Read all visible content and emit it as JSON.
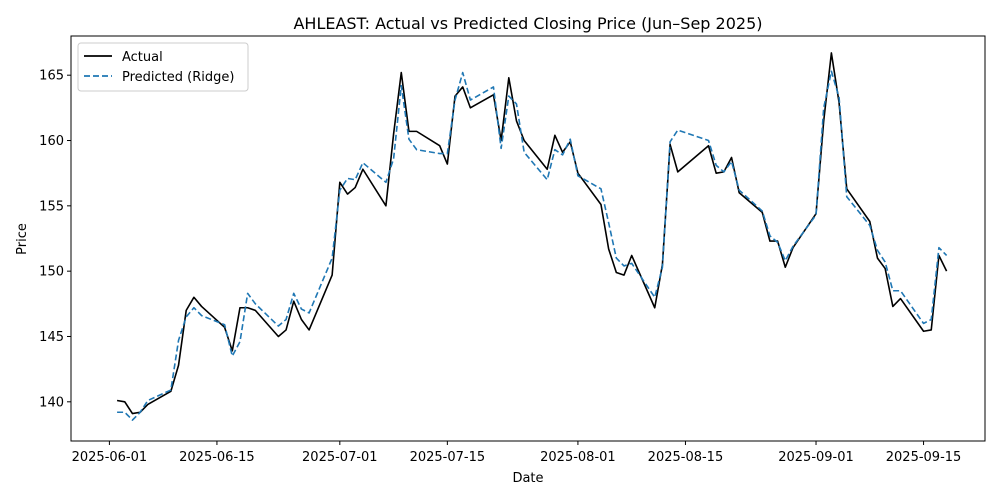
{
  "chart_data": {
    "type": "line",
    "title": "AHLEAST: Actual vs Predicted Closing Price (Jun–Sep 2025)",
    "xlabel": "Date",
    "ylabel": "Price",
    "xlim": [
      "2025-05-27",
      "2025-09-23"
    ],
    "ylim": [
      137.0,
      168.0
    ],
    "x_ticks": [
      "2025-06-01",
      "2025-06-15",
      "2025-07-01",
      "2025-07-15",
      "2025-08-01",
      "2025-08-15",
      "2025-09-01",
      "2025-09-15"
    ],
    "y_ticks": [
      140,
      145,
      150,
      155,
      160,
      165
    ],
    "legend_position": "top-left",
    "x": [
      "2025-06-02",
      "2025-06-03",
      "2025-06-04",
      "2025-06-05",
      "2025-06-06",
      "2025-06-09",
      "2025-06-10",
      "2025-06-11",
      "2025-06-12",
      "2025-06-13",
      "2025-06-16",
      "2025-06-17",
      "2025-06-18",
      "2025-06-19",
      "2025-06-20",
      "2025-06-23",
      "2025-06-24",
      "2025-06-25",
      "2025-06-26",
      "2025-06-27",
      "2025-06-30",
      "2025-07-01",
      "2025-07-02",
      "2025-07-03",
      "2025-07-04",
      "2025-07-07",
      "2025-07-08",
      "2025-07-09",
      "2025-07-10",
      "2025-07-11",
      "2025-07-14",
      "2025-07-15",
      "2025-07-16",
      "2025-07-17",
      "2025-07-18",
      "2025-07-21",
      "2025-07-22",
      "2025-07-23",
      "2025-07-24",
      "2025-07-25",
      "2025-07-28",
      "2025-07-29",
      "2025-07-30",
      "2025-07-31",
      "2025-08-01",
      "2025-08-04",
      "2025-08-05",
      "2025-08-06",
      "2025-08-07",
      "2025-08-08",
      "2025-08-11",
      "2025-08-12",
      "2025-08-13",
      "2025-08-14",
      "2025-08-18",
      "2025-08-19",
      "2025-08-20",
      "2025-08-21",
      "2025-08-22",
      "2025-08-25",
      "2025-08-26",
      "2025-08-27",
      "2025-08-28",
      "2025-08-29",
      "2025-09-01",
      "2025-09-02",
      "2025-09-03",
      "2025-09-04",
      "2025-09-05",
      "2025-09-08",
      "2025-09-09",
      "2025-09-10",
      "2025-09-11",
      "2025-09-12",
      "2025-09-15",
      "2025-09-16",
      "2025-09-17",
      "2025-09-18"
    ],
    "series": [
      {
        "name": "Actual",
        "color": "#000000",
        "style": "solid",
        "values": [
          140.1,
          140.0,
          139.1,
          139.2,
          139.8,
          140.8,
          142.8,
          147.0,
          148.0,
          147.3,
          145.7,
          143.9,
          147.2,
          147.2,
          147.0,
          145.0,
          145.5,
          147.7,
          146.3,
          145.5,
          149.7,
          156.8,
          155.9,
          156.4,
          157.8,
          155.0,
          160.5,
          165.2,
          160.7,
          160.7,
          159.6,
          158.2,
          163.4,
          164.1,
          162.5,
          163.5,
          160.0,
          164.8,
          161.5,
          160.0,
          157.8,
          160.4,
          159.1,
          159.9,
          157.5,
          155.1,
          151.7,
          149.9,
          149.7,
          151.2,
          147.2,
          150.5,
          159.7,
          157.6,
          159.6,
          157.5,
          157.6,
          158.7,
          156.0,
          154.5,
          152.3,
          152.3,
          150.3,
          151.8,
          154.4,
          161.5,
          166.7,
          162.9,
          156.3,
          153.8,
          151.0,
          150.2,
          147.3,
          147.9,
          145.4,
          145.5,
          151.2,
          150.0
        ]
      },
      {
        "name": "Predicted (Ridge)",
        "color": "#1f77b4",
        "style": "dashed",
        "values": [
          139.2,
          139.2,
          138.6,
          139.2,
          140.1,
          140.9,
          144.7,
          146.5,
          147.2,
          146.6,
          145.9,
          143.5,
          144.6,
          148.3,
          147.5,
          145.8,
          146.3,
          148.3,
          147.1,
          146.8,
          151.0,
          156.2,
          157.1,
          157.0,
          158.3,
          156.8,
          158.6,
          164.2,
          160.1,
          159.3,
          159.0,
          159.0,
          163.1,
          165.2,
          163.1,
          164.1,
          159.4,
          163.4,
          162.8,
          159.1,
          157.0,
          159.3,
          158.9,
          160.1,
          157.3,
          156.3,
          153.7,
          151.0,
          150.4,
          150.6,
          148.0,
          150.3,
          159.9,
          160.8,
          160.0,
          158.1,
          157.6,
          158.4,
          156.2,
          154.6,
          152.7,
          152.2,
          150.8,
          151.9,
          154.3,
          162.5,
          165.3,
          163.3,
          155.7,
          153.5,
          151.6,
          150.7,
          148.5,
          148.5,
          146.0,
          146.3,
          151.8,
          151.2
        ]
      }
    ]
  }
}
